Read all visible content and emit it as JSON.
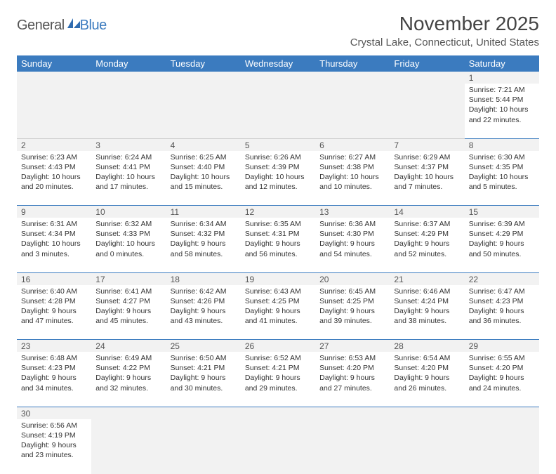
{
  "logo": {
    "general": "General",
    "blue": "Blue"
  },
  "title": {
    "month_year": "November 2025",
    "location": "Crystal Lake, Connecticut, United States"
  },
  "colors": {
    "header_bg": "#3b7bbf",
    "row_alt": "#f2f2f2",
    "border": "#3b7bbf"
  },
  "weekdays": [
    "Sunday",
    "Monday",
    "Tuesday",
    "Wednesday",
    "Thursday",
    "Friday",
    "Saturday"
  ],
  "weeks": [
    [
      null,
      null,
      null,
      null,
      null,
      null,
      {
        "n": "1",
        "sr": "7:21 AM",
        "ss": "5:44 PM",
        "dl": "10 hours and 22 minutes."
      }
    ],
    [
      {
        "n": "2",
        "sr": "6:23 AM",
        "ss": "4:43 PM",
        "dl": "10 hours and 20 minutes."
      },
      {
        "n": "3",
        "sr": "6:24 AM",
        "ss": "4:41 PM",
        "dl": "10 hours and 17 minutes."
      },
      {
        "n": "4",
        "sr": "6:25 AM",
        "ss": "4:40 PM",
        "dl": "10 hours and 15 minutes."
      },
      {
        "n": "5",
        "sr": "6:26 AM",
        "ss": "4:39 PM",
        "dl": "10 hours and 12 minutes."
      },
      {
        "n": "6",
        "sr": "6:27 AM",
        "ss": "4:38 PM",
        "dl": "10 hours and 10 minutes."
      },
      {
        "n": "7",
        "sr": "6:29 AM",
        "ss": "4:37 PM",
        "dl": "10 hours and 7 minutes."
      },
      {
        "n": "8",
        "sr": "6:30 AM",
        "ss": "4:35 PM",
        "dl": "10 hours and 5 minutes."
      }
    ],
    [
      {
        "n": "9",
        "sr": "6:31 AM",
        "ss": "4:34 PM",
        "dl": "10 hours and 3 minutes."
      },
      {
        "n": "10",
        "sr": "6:32 AM",
        "ss": "4:33 PM",
        "dl": "10 hours and 0 minutes."
      },
      {
        "n": "11",
        "sr": "6:34 AM",
        "ss": "4:32 PM",
        "dl": "9 hours and 58 minutes."
      },
      {
        "n": "12",
        "sr": "6:35 AM",
        "ss": "4:31 PM",
        "dl": "9 hours and 56 minutes."
      },
      {
        "n": "13",
        "sr": "6:36 AM",
        "ss": "4:30 PM",
        "dl": "9 hours and 54 minutes."
      },
      {
        "n": "14",
        "sr": "6:37 AM",
        "ss": "4:29 PM",
        "dl": "9 hours and 52 minutes."
      },
      {
        "n": "15",
        "sr": "6:39 AM",
        "ss": "4:29 PM",
        "dl": "9 hours and 50 minutes."
      }
    ],
    [
      {
        "n": "16",
        "sr": "6:40 AM",
        "ss": "4:28 PM",
        "dl": "9 hours and 47 minutes."
      },
      {
        "n": "17",
        "sr": "6:41 AM",
        "ss": "4:27 PM",
        "dl": "9 hours and 45 minutes."
      },
      {
        "n": "18",
        "sr": "6:42 AM",
        "ss": "4:26 PM",
        "dl": "9 hours and 43 minutes."
      },
      {
        "n": "19",
        "sr": "6:43 AM",
        "ss": "4:25 PM",
        "dl": "9 hours and 41 minutes."
      },
      {
        "n": "20",
        "sr": "6:45 AM",
        "ss": "4:25 PM",
        "dl": "9 hours and 39 minutes."
      },
      {
        "n": "21",
        "sr": "6:46 AM",
        "ss": "4:24 PM",
        "dl": "9 hours and 38 minutes."
      },
      {
        "n": "22",
        "sr": "6:47 AM",
        "ss": "4:23 PM",
        "dl": "9 hours and 36 minutes."
      }
    ],
    [
      {
        "n": "23",
        "sr": "6:48 AM",
        "ss": "4:23 PM",
        "dl": "9 hours and 34 minutes."
      },
      {
        "n": "24",
        "sr": "6:49 AM",
        "ss": "4:22 PM",
        "dl": "9 hours and 32 minutes."
      },
      {
        "n": "25",
        "sr": "6:50 AM",
        "ss": "4:21 PM",
        "dl": "9 hours and 30 minutes."
      },
      {
        "n": "26",
        "sr": "6:52 AM",
        "ss": "4:21 PM",
        "dl": "9 hours and 29 minutes."
      },
      {
        "n": "27",
        "sr": "6:53 AM",
        "ss": "4:20 PM",
        "dl": "9 hours and 27 minutes."
      },
      {
        "n": "28",
        "sr": "6:54 AM",
        "ss": "4:20 PM",
        "dl": "9 hours and 26 minutes."
      },
      {
        "n": "29",
        "sr": "6:55 AM",
        "ss": "4:20 PM",
        "dl": "9 hours and 24 minutes."
      }
    ],
    [
      {
        "n": "30",
        "sr": "6:56 AM",
        "ss": "4:19 PM",
        "dl": "9 hours and 23 minutes."
      },
      null,
      null,
      null,
      null,
      null,
      null
    ]
  ],
  "labels": {
    "sunrise": "Sunrise: ",
    "sunset": "Sunset: ",
    "daylight": "Daylight: "
  }
}
